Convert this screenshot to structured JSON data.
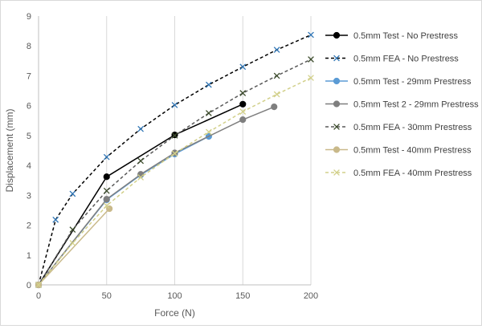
{
  "chart_data": {
    "type": "line",
    "xlabel": "Force (N)",
    "ylabel": "Displacement (mm)",
    "xlim": [
      0,
      200
    ],
    "ylim": [
      0,
      9
    ],
    "xticks": [
      0,
      50,
      100,
      150,
      200
    ],
    "yticks": [
      0,
      1,
      2,
      3,
      4,
      5,
      6,
      7,
      8,
      9
    ],
    "grid": "vertical",
    "legend_position": "right",
    "series": [
      {
        "name": "0.5mm Test - No Prestress",
        "color": "#000000",
        "line_style": "solid",
        "marker": "circle",
        "x": [
          0,
          50,
          100,
          150
        ],
        "y": [
          0,
          3.62,
          5.02,
          6.05
        ]
      },
      {
        "name": "0.5mm FEA - No Prestress",
        "color": "#000000",
        "marker_color": "#2e75b6",
        "line_style": "dashed",
        "marker": "x",
        "x": [
          0,
          12.5,
          25,
          50,
          75,
          100,
          125,
          150,
          175,
          200
        ],
        "y": [
          0,
          2.18,
          3.05,
          4.28,
          5.22,
          6.02,
          6.7,
          7.3,
          7.87,
          8.37
        ]
      },
      {
        "name": "0.5mm Test - 29mm Prestress",
        "color": "#5b9bd5",
        "line_style": "solid",
        "marker": "circle",
        "x": [
          0,
          50,
          75,
          100,
          125
        ],
        "y": [
          0,
          2.85,
          3.68,
          4.38,
          4.97
        ]
      },
      {
        "name": "0.5mm Test 2 - 29mm Prestress",
        "color": "#7f7f7f",
        "line_style": "solid",
        "marker": "circle",
        "x": [
          0,
          50,
          75,
          100,
          150,
          173
        ],
        "y": [
          0,
          2.87,
          3.7,
          4.42,
          5.53,
          5.96
        ]
      },
      {
        "name": "0.5mm FEA - 30mm Prestress",
        "color": "#595959",
        "marker_color": "#3a4a2a",
        "line_style": "dashed",
        "marker": "x",
        "x": [
          0,
          25,
          50,
          75,
          100,
          125,
          150,
          175,
          200
        ],
        "y": [
          0,
          1.85,
          3.15,
          4.15,
          5.0,
          5.75,
          6.42,
          7.0,
          7.55
        ]
      },
      {
        "name": "0.5mm Test - 40mm Prestress",
        "color": "#c9b98a",
        "line_style": "solid",
        "marker": "circle",
        "x": [
          0,
          52
        ],
        "y": [
          0,
          2.55
        ]
      },
      {
        "name": "0.5mm FEA - 40mm Prestress",
        "color": "#d2d08a",
        "line_style": "dashed",
        "marker": "x",
        "x": [
          0,
          25,
          50,
          75,
          100,
          125,
          150,
          175,
          200
        ],
        "y": [
          0,
          1.4,
          2.65,
          3.6,
          4.4,
          5.12,
          5.8,
          6.38,
          6.93
        ]
      }
    ]
  }
}
